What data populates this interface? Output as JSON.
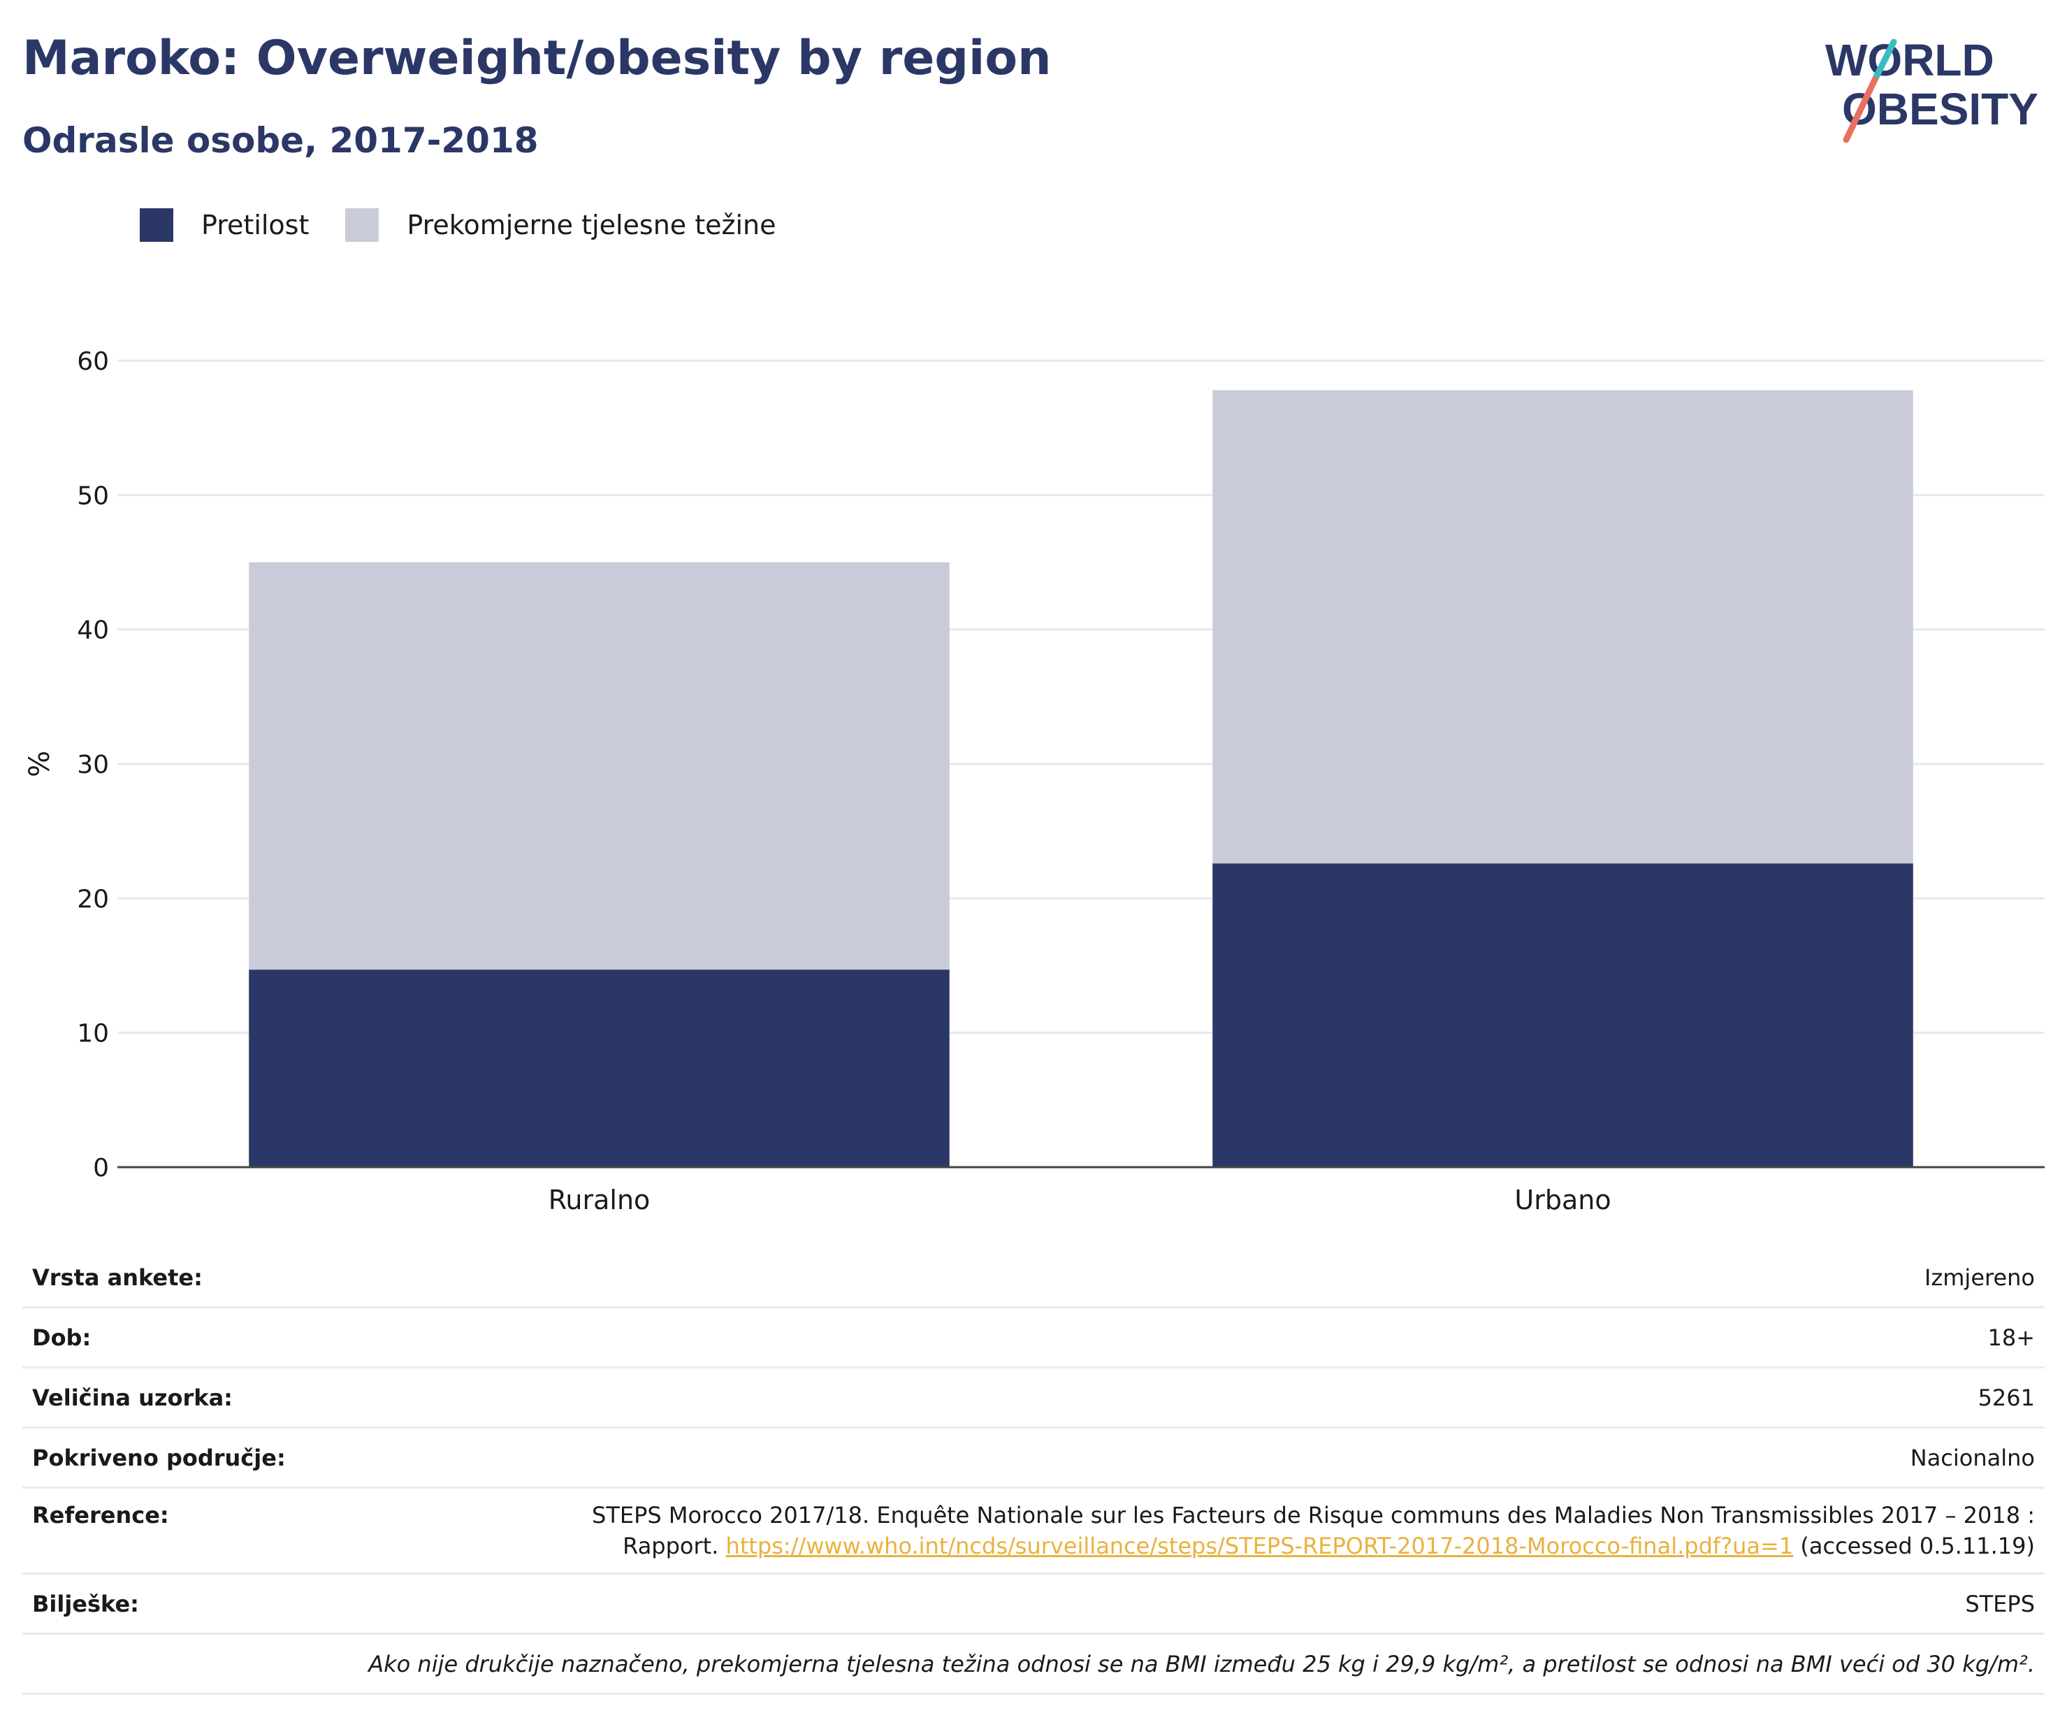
{
  "header": {
    "title": "Maroko: Overweight/obesity by region",
    "subtitle": "Odrasle osobe, 2017-2018"
  },
  "logo": {
    "line1": "WORLD",
    "line2": "OBESITY",
    "accent_teal": "#3bbcc1",
    "accent_coral": "#e8705f"
  },
  "colors": {
    "obesity": "#2b3766",
    "overweight": "#c9ccd8",
    "title": "#2b3766",
    "link": "#e8b23e"
  },
  "legend": [
    {
      "label": "Pretilost",
      "color": "#2b3766"
    },
    {
      "label": "Prekomjerne tjelesne težine",
      "color": "#c9ccd8"
    }
  ],
  "chart_data": {
    "type": "bar",
    "stacked": true,
    "categories": [
      "Ruralno",
      "Urbano"
    ],
    "series": [
      {
        "name": "Pretilost",
        "values": [
          14.7,
          22.6
        ]
      },
      {
        "name": "Prekomjerne tjelesne težine",
        "values": [
          30.3,
          35.2
        ]
      }
    ],
    "ylabel": "%",
    "xlabel": "",
    "ylim": [
      0,
      60
    ],
    "yticks": [
      0,
      10,
      20,
      30,
      40,
      50,
      60
    ],
    "grid": true,
    "legend_position": "top-left"
  },
  "info": {
    "rows": [
      {
        "label": "Vrsta ankete:",
        "value": "Izmjereno"
      },
      {
        "label": "Dob:",
        "value": "18+"
      },
      {
        "label": "Veličina uzorka:",
        "value": "5261"
      },
      {
        "label": "Pokriveno područje:",
        "value": "Nacionalno"
      }
    ],
    "reference": {
      "label": "Reference:",
      "text_line1": "STEPS Morocco 2017/18. Enquête Nationale sur les Facteurs de Risque communs des Maladies Non Transmissibles 2017 – 2018 :",
      "text_pre": "Rapport.",
      "link": "https://www.who.int/ncds/surveillance/steps/STEPS-REPORT-2017-2018-Morocco-final.pdf?ua=1",
      "text_post": "(accessed 0.5.11.19)"
    },
    "notes": {
      "label": "Bilješke:",
      "value": "STEPS"
    },
    "footnote": "Ako nije drukčije naznačeno, prekomjerna tjelesna težina odnosi se na BMI između 25 kg i 29,9 kg/m², a pretilost se odnosi na BMI veći od 30 kg/m²."
  }
}
